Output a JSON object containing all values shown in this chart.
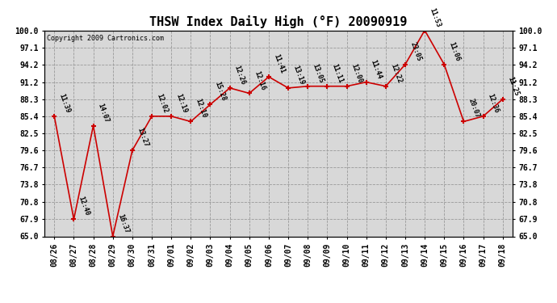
{
  "title": "THSW Index Daily High (°F) 20090919",
  "copyright": "Copyright 2009 Cartronics.com",
  "x_labels": [
    "08/26",
    "08/27",
    "08/28",
    "08/29",
    "08/30",
    "08/31",
    "09/01",
    "09/02",
    "09/03",
    "09/04",
    "09/05",
    "09/06",
    "09/07",
    "09/08",
    "09/09",
    "09/10",
    "09/11",
    "09/12",
    "09/13",
    "09/14",
    "09/15",
    "09/16",
    "09/17",
    "09/18"
  ],
  "y_values": [
    85.4,
    67.9,
    83.8,
    65.0,
    79.6,
    85.4,
    85.4,
    84.5,
    87.4,
    90.2,
    89.3,
    92.1,
    90.2,
    90.5,
    90.5,
    90.5,
    91.2,
    90.5,
    94.2,
    100.0,
    94.2,
    84.5,
    85.4,
    88.3
  ],
  "time_labels": [
    "11:39",
    "12:40",
    "14:07",
    "16:37",
    "13:27",
    "12:02",
    "12:19",
    "12:10",
    "15:28",
    "12:26",
    "12:16",
    "11:41",
    "13:19",
    "13:05",
    "11:11",
    "12:00",
    "11:44",
    "12:22",
    "23:05",
    "11:53",
    "11:06",
    "20:07",
    "12:36",
    "11:25"
  ],
  "ylim_min": 65.0,
  "ylim_max": 100.0,
  "yticks": [
    65.0,
    67.9,
    70.8,
    73.8,
    76.7,
    79.6,
    82.5,
    85.4,
    88.3,
    91.2,
    94.2,
    97.1,
    100.0
  ],
  "line_color": "#cc0000",
  "marker_color": "#cc0000",
  "bg_color": "#d8d8d8",
  "grid_color": "#999999",
  "title_fontsize": 11,
  "tick_fontsize": 7,
  "label_fontsize": 6
}
